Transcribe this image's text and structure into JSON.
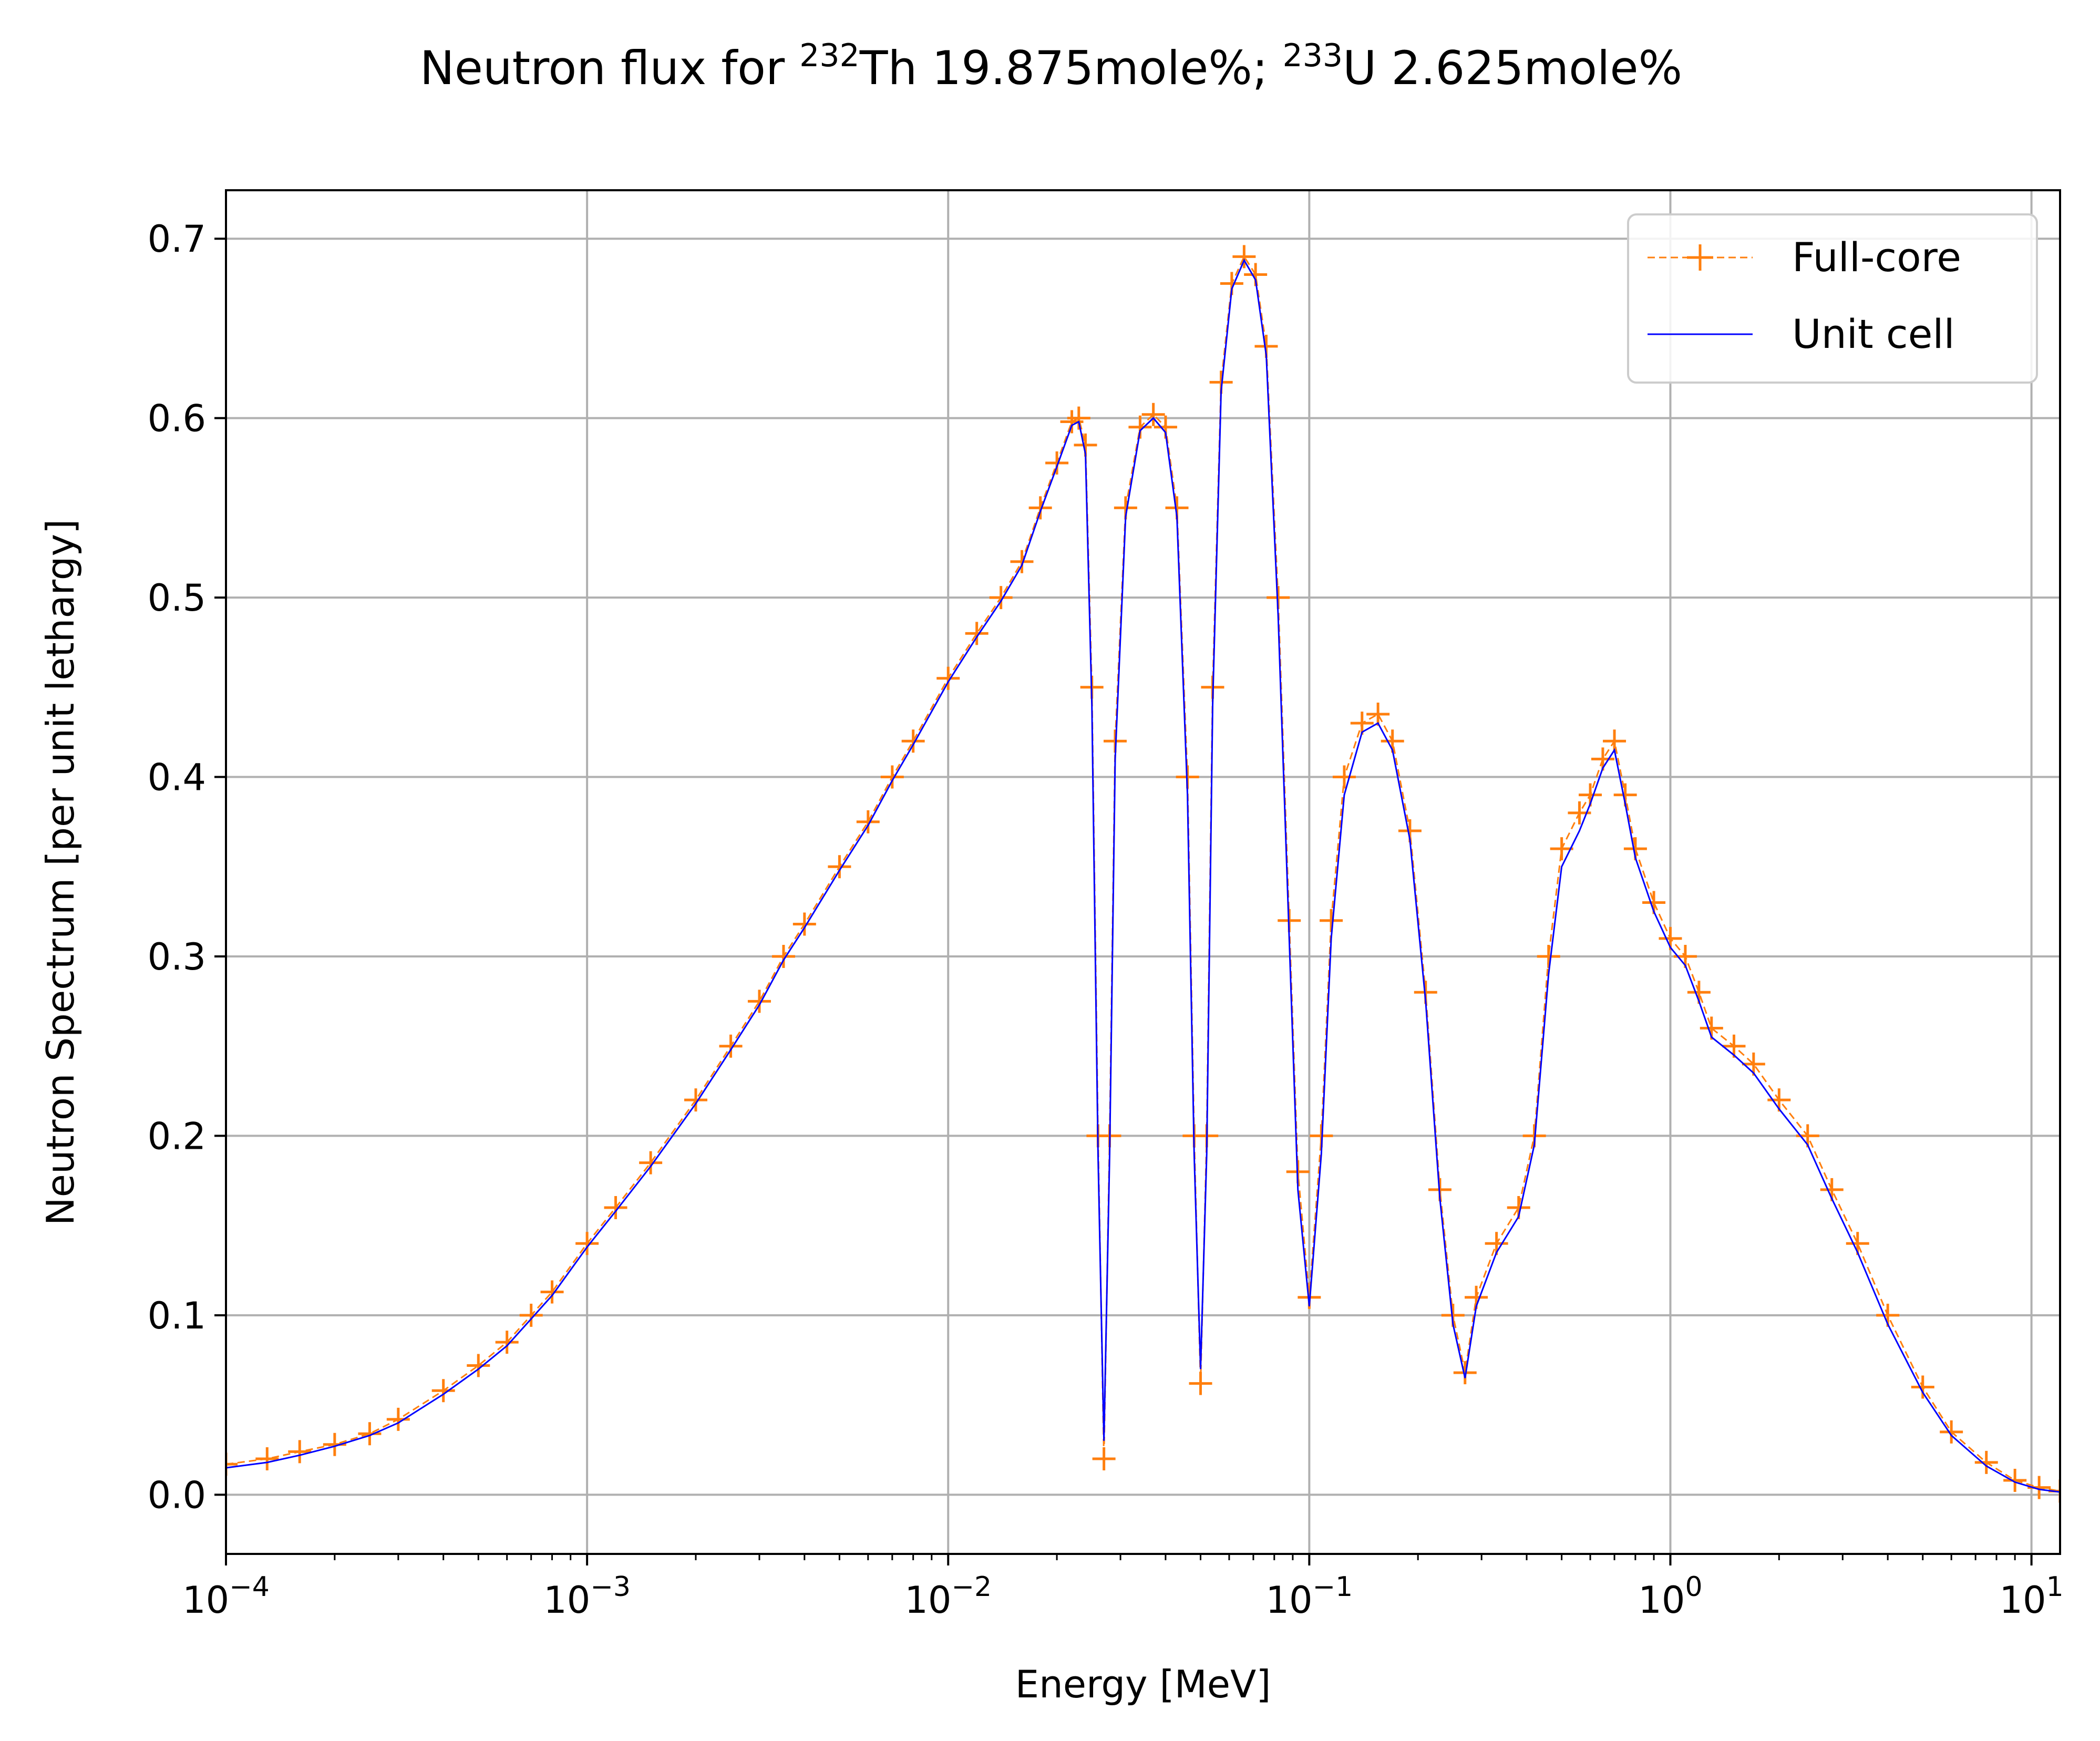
{
  "chart_data": {
    "type": "line",
    "title": "Neutron flux for 232Th 19.875mole%; 233U 2.625mole%",
    "title_parts": {
      "prefix": "Neutron flux for ",
      "sup1": "232",
      "mid1": "Th 19.875mole%; ",
      "sup2": "233",
      "mid2": "U 2.625mole%"
    },
    "xlabel": "Energy [MeV]",
    "ylabel": "Neutron Spectrum [per unit lethargy]",
    "xscale": "log",
    "xlim": [
      0.0001,
      12
    ],
    "ylim": [
      -0.033,
      0.727
    ],
    "grid": true,
    "legend_position": "top-right",
    "x_ticks": [
      {
        "value": 0.0001,
        "base": "10",
        "exp": "−4"
      },
      {
        "value": 0.001,
        "base": "10",
        "exp": "−3"
      },
      {
        "value": 0.01,
        "base": "10",
        "exp": "−2"
      },
      {
        "value": 0.1,
        "base": "10",
        "exp": "−1"
      },
      {
        "value": 1,
        "base": "10",
        "exp": "0"
      },
      {
        "value": 10,
        "base": "10",
        "exp": "1"
      }
    ],
    "y_ticks": [
      {
        "value": 0.0,
        "label": "0.0"
      },
      {
        "value": 0.1,
        "label": "0.1"
      },
      {
        "value": 0.2,
        "label": "0.2"
      },
      {
        "value": 0.3,
        "label": "0.3"
      },
      {
        "value": 0.4,
        "label": "0.4"
      },
      {
        "value": 0.5,
        "label": "0.5"
      },
      {
        "value": 0.6,
        "label": "0.6"
      },
      {
        "value": 0.7,
        "label": "0.7"
      }
    ],
    "series": [
      {
        "name": "Full-core",
        "color": "#ff7f0e",
        "style": "dashed line with + markers",
        "points": [
          [
            0.0001,
            0.017
          ],
          [
            0.00013,
            0.02
          ],
          [
            0.00016,
            0.024
          ],
          [
            0.0002,
            0.028
          ],
          [
            0.00025,
            0.034
          ],
          [
            0.0003,
            0.042
          ],
          [
            0.0004,
            0.058
          ],
          [
            0.0005,
            0.072
          ],
          [
            0.0006,
            0.085
          ],
          [
            0.0007,
            0.1
          ],
          [
            0.0008,
            0.113
          ],
          [
            0.001,
            0.14
          ],
          [
            0.0012,
            0.16
          ],
          [
            0.0015,
            0.185
          ],
          [
            0.002,
            0.22
          ],
          [
            0.0025,
            0.25
          ],
          [
            0.003,
            0.275
          ],
          [
            0.0035,
            0.3
          ],
          [
            0.004,
            0.318
          ],
          [
            0.005,
            0.35
          ],
          [
            0.006,
            0.375
          ],
          [
            0.007,
            0.4
          ],
          [
            0.008,
            0.42
          ],
          [
            0.01,
            0.455
          ],
          [
            0.012,
            0.48
          ],
          [
            0.014,
            0.5
          ],
          [
            0.016,
            0.52
          ],
          [
            0.018,
            0.55
          ],
          [
            0.02,
            0.575
          ],
          [
            0.022,
            0.598
          ],
          [
            0.023,
            0.6
          ],
          [
            0.024,
            0.585
          ],
          [
            0.025,
            0.45
          ],
          [
            0.026,
            0.2
          ],
          [
            0.027,
            0.02
          ],
          [
            0.028,
            0.2
          ],
          [
            0.029,
            0.42
          ],
          [
            0.031,
            0.55
          ],
          [
            0.034,
            0.595
          ],
          [
            0.037,
            0.602
          ],
          [
            0.04,
            0.595
          ],
          [
            0.043,
            0.55
          ],
          [
            0.046,
            0.4
          ],
          [
            0.048,
            0.2
          ],
          [
            0.05,
            0.062
          ],
          [
            0.052,
            0.2
          ],
          [
            0.054,
            0.45
          ],
          [
            0.057,
            0.62
          ],
          [
            0.061,
            0.675
          ],
          [
            0.066,
            0.69
          ],
          [
            0.071,
            0.68
          ],
          [
            0.076,
            0.64
          ],
          [
            0.082,
            0.5
          ],
          [
            0.088,
            0.32
          ],
          [
            0.093,
            0.18
          ],
          [
            0.1,
            0.11
          ],
          [
            0.108,
            0.2
          ],
          [
            0.115,
            0.32
          ],
          [
            0.125,
            0.4
          ],
          [
            0.14,
            0.43
          ],
          [
            0.155,
            0.435
          ],
          [
            0.17,
            0.42
          ],
          [
            0.19,
            0.37
          ],
          [
            0.21,
            0.28
          ],
          [
            0.23,
            0.17
          ],
          [
            0.25,
            0.1
          ],
          [
            0.27,
            0.068
          ],
          [
            0.29,
            0.11
          ],
          [
            0.33,
            0.14
          ],
          [
            0.38,
            0.16
          ],
          [
            0.42,
            0.2
          ],
          [
            0.46,
            0.3
          ],
          [
            0.5,
            0.36
          ],
          [
            0.56,
            0.38
          ],
          [
            0.6,
            0.39
          ],
          [
            0.65,
            0.41
          ],
          [
            0.7,
            0.42
          ],
          [
            0.75,
            0.39
          ],
          [
            0.8,
            0.36
          ],
          [
            0.9,
            0.33
          ],
          [
            1.0,
            0.31
          ],
          [
            1.1,
            0.3
          ],
          [
            1.2,
            0.28
          ],
          [
            1.3,
            0.26
          ],
          [
            1.5,
            0.25
          ],
          [
            1.7,
            0.24
          ],
          [
            2.0,
            0.22
          ],
          [
            2.4,
            0.2
          ],
          [
            2.8,
            0.17
          ],
          [
            3.3,
            0.14
          ],
          [
            4.0,
            0.1
          ],
          [
            5.0,
            0.06
          ],
          [
            6.0,
            0.035
          ],
          [
            7.5,
            0.018
          ],
          [
            9.0,
            0.008
          ],
          [
            10.5,
            0.004
          ],
          [
            12.0,
            0.002
          ]
        ]
      },
      {
        "name": "Unit cell",
        "color": "#0000ff",
        "style": "solid thin line",
        "points": [
          [
            0.0001,
            0.015
          ],
          [
            0.00013,
            0.018
          ],
          [
            0.00016,
            0.022
          ],
          [
            0.0002,
            0.027
          ],
          [
            0.00025,
            0.033
          ],
          [
            0.0003,
            0.04
          ],
          [
            0.0004,
            0.056
          ],
          [
            0.0005,
            0.07
          ],
          [
            0.0006,
            0.083
          ],
          [
            0.0007,
            0.098
          ],
          [
            0.0008,
            0.111
          ],
          [
            0.001,
            0.138
          ],
          [
            0.0012,
            0.158
          ],
          [
            0.0015,
            0.183
          ],
          [
            0.002,
            0.218
          ],
          [
            0.0025,
            0.248
          ],
          [
            0.003,
            0.273
          ],
          [
            0.0035,
            0.298
          ],
          [
            0.004,
            0.316
          ],
          [
            0.005,
            0.348
          ],
          [
            0.006,
            0.373
          ],
          [
            0.007,
            0.398
          ],
          [
            0.008,
            0.418
          ],
          [
            0.01,
            0.453
          ],
          [
            0.012,
            0.478
          ],
          [
            0.014,
            0.498
          ],
          [
            0.016,
            0.518
          ],
          [
            0.018,
            0.548
          ],
          [
            0.02,
            0.573
          ],
          [
            0.022,
            0.596
          ],
          [
            0.023,
            0.598
          ],
          [
            0.024,
            0.58
          ],
          [
            0.025,
            0.44
          ],
          [
            0.026,
            0.19
          ],
          [
            0.027,
            0.03
          ],
          [
            0.028,
            0.19
          ],
          [
            0.029,
            0.41
          ],
          [
            0.031,
            0.545
          ],
          [
            0.034,
            0.593
          ],
          [
            0.037,
            0.6
          ],
          [
            0.04,
            0.592
          ],
          [
            0.043,
            0.545
          ],
          [
            0.046,
            0.39
          ],
          [
            0.048,
            0.19
          ],
          [
            0.05,
            0.07
          ],
          [
            0.052,
            0.19
          ],
          [
            0.054,
            0.44
          ],
          [
            0.057,
            0.615
          ],
          [
            0.061,
            0.672
          ],
          [
            0.066,
            0.688
          ],
          [
            0.071,
            0.677
          ],
          [
            0.076,
            0.635
          ],
          [
            0.082,
            0.49
          ],
          [
            0.088,
            0.31
          ],
          [
            0.093,
            0.17
          ],
          [
            0.1,
            0.105
          ],
          [
            0.108,
            0.19
          ],
          [
            0.115,
            0.31
          ],
          [
            0.125,
            0.39
          ],
          [
            0.14,
            0.425
          ],
          [
            0.155,
            0.43
          ],
          [
            0.17,
            0.415
          ],
          [
            0.19,
            0.365
          ],
          [
            0.21,
            0.275
          ],
          [
            0.23,
            0.165
          ],
          [
            0.25,
            0.095
          ],
          [
            0.27,
            0.065
          ],
          [
            0.29,
            0.105
          ],
          [
            0.33,
            0.135
          ],
          [
            0.38,
            0.155
          ],
          [
            0.42,
            0.195
          ],
          [
            0.46,
            0.29
          ],
          [
            0.5,
            0.35
          ],
          [
            0.56,
            0.37
          ],
          [
            0.6,
            0.385
          ],
          [
            0.65,
            0.405
          ],
          [
            0.7,
            0.415
          ],
          [
            0.75,
            0.385
          ],
          [
            0.8,
            0.355
          ],
          [
            0.9,
            0.325
          ],
          [
            1.0,
            0.305
          ],
          [
            1.1,
            0.295
          ],
          [
            1.2,
            0.275
          ],
          [
            1.3,
            0.255
          ],
          [
            1.5,
            0.245
          ],
          [
            1.7,
            0.235
          ],
          [
            2.0,
            0.215
          ],
          [
            2.4,
            0.195
          ],
          [
            2.8,
            0.165
          ],
          [
            3.3,
            0.135
          ],
          [
            4.0,
            0.095
          ],
          [
            5.0,
            0.057
          ],
          [
            6.0,
            0.033
          ],
          [
            7.5,
            0.016
          ],
          [
            9.0,
            0.007
          ],
          [
            10.5,
            0.003
          ],
          [
            12.0,
            0.0015
          ]
        ]
      }
    ]
  }
}
